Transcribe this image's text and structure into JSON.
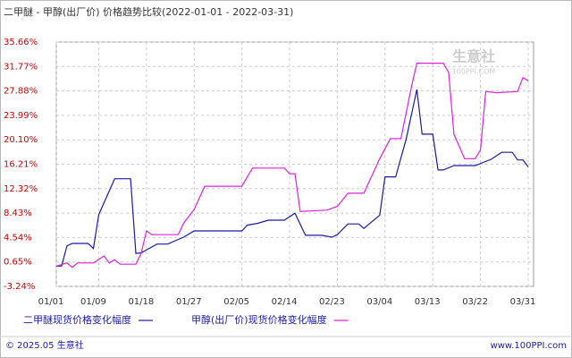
{
  "chart_data": {
    "type": "line",
    "title": "二甲醚 - 甲醇(出厂价) 价格趋势比较(2022-01-01 - 2022-03-31)",
    "watermark": "生意社",
    "watermark_url": "100PPI.COM",
    "footer_left": "© 2025.05 生意社",
    "footer_right": "www.100PPI.com",
    "ylim": [
      -3.24,
      35.66
    ],
    "yticks": [
      {
        "value": 35.66,
        "label": "35.66%"
      },
      {
        "value": 31.77,
        "label": "31.77%"
      },
      {
        "value": 27.88,
        "label": "27.88%"
      },
      {
        "value": 23.99,
        "label": "23.99%"
      },
      {
        "value": 20.1,
        "label": "20.10%"
      },
      {
        "value": 16.21,
        "label": "16.21%"
      },
      {
        "value": 12.32,
        "label": "12.32%"
      },
      {
        "value": 8.43,
        "label": "8.43%"
      },
      {
        "value": 4.54,
        "label": "4.54%"
      },
      {
        "value": 0.65,
        "label": "0.65%"
      },
      {
        "value": -3.24,
        "label": "-3.24%"
      }
    ],
    "xticks": [
      "01/01",
      "01/09",
      "01/18",
      "01/27",
      "02/05",
      "02/14",
      "02/23",
      "03/04",
      "03/13",
      "03/22",
      "03/31"
    ],
    "grid": true,
    "series": [
      {
        "name": "二甲醚现货价格变化幅度",
        "color": "#1a1aa6",
        "x": [
          "01/01",
          "01/02",
          "01/03",
          "01/04",
          "01/07",
          "01/08",
          "01/09",
          "01/12",
          "01/15",
          "01/16",
          "01/17",
          "01/20",
          "01/22",
          "01/25",
          "01/27",
          "02/05",
          "02/06",
          "02/08",
          "02/10",
          "02/13",
          "02/15",
          "02/17",
          "02/20",
          "02/22",
          "02/23",
          "02/25",
          "02/27",
          "02/28",
          "03/03",
          "03/04",
          "03/06",
          "03/08",
          "03/10",
          "03/11",
          "03/13",
          "03/14",
          "03/15",
          "03/17",
          "03/21",
          "03/24",
          "03/26",
          "03/28",
          "03/29",
          "03/30",
          "03/31"
        ],
        "values": [
          0,
          0,
          3.2,
          3.6,
          3.6,
          2.8,
          8.2,
          13.9,
          13.9,
          2.0,
          2.1,
          3.5,
          3.5,
          4.6,
          5.6,
          5.6,
          6.5,
          6.8,
          7.3,
          7.3,
          8.4,
          4.9,
          4.9,
          4.6,
          5.0,
          6.7,
          6.7,
          6.0,
          8.1,
          14.2,
          14.2,
          20.3,
          28.1,
          21.0,
          21.0,
          15.3,
          15.3,
          16.0,
          16.0,
          17.0,
          18.1,
          18.1,
          16.9,
          16.9,
          15.8
        ]
      },
      {
        "name": "甲醇(出厂价)现货价格变化幅度",
        "color": "#e020e0",
        "x": [
          "01/01",
          "01/03",
          "01/04",
          "01/05",
          "01/08",
          "01/10",
          "01/11",
          "01/12",
          "01/13",
          "01/16",
          "01/17",
          "01/18",
          "01/19",
          "01/24",
          "01/25",
          "01/27",
          "01/29",
          "02/05",
          "02/07",
          "02/13",
          "02/14",
          "02/15",
          "02/16",
          "02/21",
          "02/23",
          "02/25",
          "02/28",
          "03/03",
          "03/05",
          "03/07",
          "03/09",
          "03/10",
          "03/15",
          "03/16",
          "03/17",
          "03/19",
          "03/21",
          "03/22",
          "03/23",
          "03/25",
          "03/29",
          "03/30",
          "03/31"
        ],
        "values": [
          0,
          0.5,
          -0.2,
          0.5,
          0.5,
          1.6,
          0.5,
          1.0,
          0.3,
          0.3,
          2.0,
          5.6,
          5.0,
          5.0,
          6.8,
          9.0,
          12.7,
          12.7,
          15.6,
          15.6,
          14.7,
          14.7,
          8.7,
          8.9,
          9.5,
          11.6,
          11.6,
          17.1,
          20.3,
          20.3,
          28.6,
          32.3,
          32.3,
          30.8,
          21.0,
          17.1,
          17.1,
          18.5,
          27.8,
          27.6,
          27.8,
          30.0,
          29.5
        ]
      }
    ]
  }
}
